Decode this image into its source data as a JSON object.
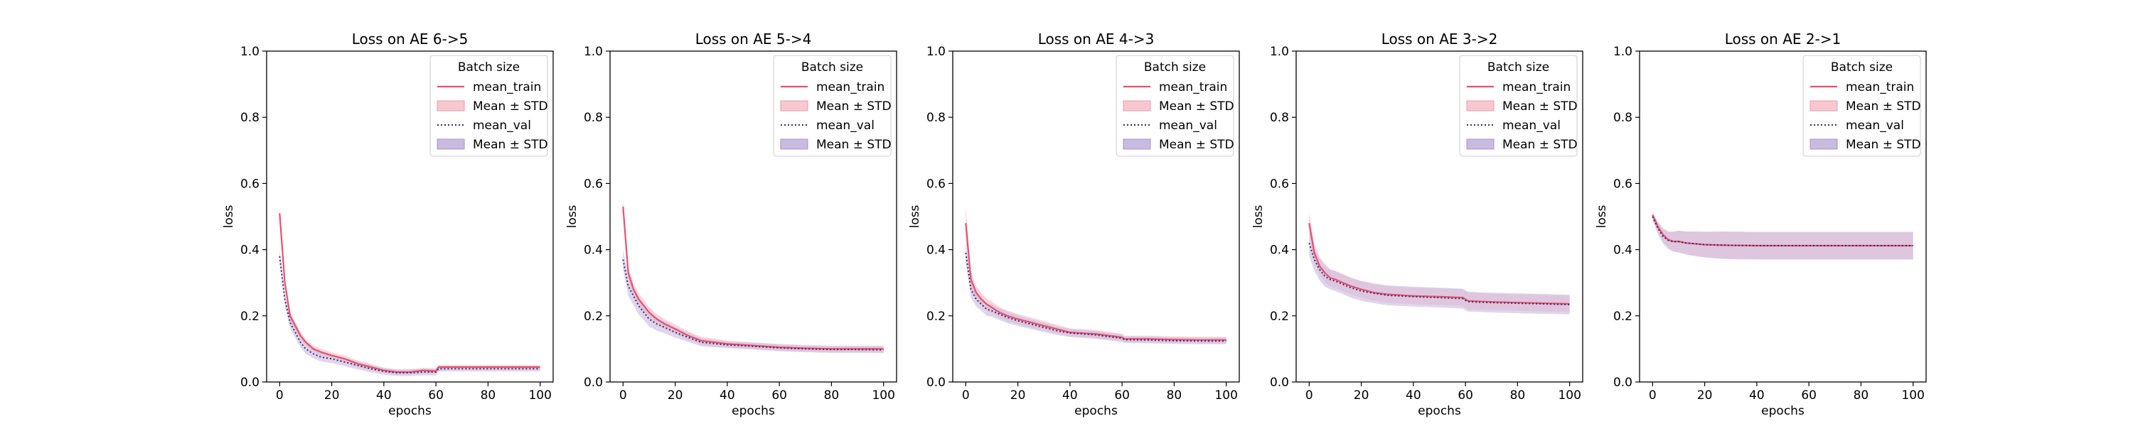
{
  "legend": {
    "title": "Batch size",
    "entries": [
      "mean_train",
      "Mean ± STD",
      "mean_val",
      "Mean ± STD"
    ]
  },
  "colors": {
    "train": "#e8506e",
    "train_band": "#f7c8d2",
    "val": "#3b2a6b",
    "val_band": "#c9bbe0",
    "overlap": "#d9a8c4"
  },
  "chart_data": [
    {
      "type": "line",
      "title": "Loss on AE 6->5",
      "xlabel": "epochs",
      "ylabel": "loss",
      "xlim": [
        -5,
        105
      ],
      "ylim": [
        0,
        1.0
      ],
      "xticks": [
        0,
        20,
        40,
        60,
        80,
        100
      ],
      "yticks": [
        0.0,
        0.2,
        0.4,
        0.6,
        0.8,
        1.0
      ],
      "legend_position": "top-right",
      "series": [
        {
          "name": "mean_train",
          "x": [
            0,
            2,
            4,
            6,
            8,
            10,
            13,
            16,
            20,
            25,
            30,
            35,
            40,
            45,
            50,
            55,
            60,
            61,
            70,
            80,
            90,
            100
          ],
          "values": [
            0.51,
            0.3,
            0.2,
            0.17,
            0.14,
            0.12,
            0.1,
            0.09,
            0.08,
            0.07,
            0.055,
            0.045,
            0.035,
            0.03,
            0.03,
            0.035,
            0.033,
            0.045,
            0.045,
            0.045,
            0.045,
            0.045
          ],
          "std": [
            0.02,
            0.015,
            0.015,
            0.012,
            0.012,
            0.01,
            0.01,
            0.01,
            0.01,
            0.01,
            0.01,
            0.01,
            0.008,
            0.008,
            0.008,
            0.008,
            0.008,
            0.006,
            0.006,
            0.006,
            0.006,
            0.006
          ]
        },
        {
          "name": "mean_val",
          "x": [
            0,
            2,
            4,
            6,
            8,
            10,
            13,
            16,
            20,
            25,
            30,
            35,
            40,
            45,
            50,
            55,
            60,
            61,
            70,
            80,
            90,
            100
          ],
          "values": [
            0.38,
            0.25,
            0.18,
            0.15,
            0.12,
            0.1,
            0.085,
            0.075,
            0.07,
            0.06,
            0.05,
            0.04,
            0.032,
            0.028,
            0.028,
            0.03,
            0.03,
            0.04,
            0.04,
            0.04,
            0.04,
            0.04
          ],
          "std": [
            0.02,
            0.018,
            0.018,
            0.016,
            0.015,
            0.015,
            0.014,
            0.013,
            0.013,
            0.012,
            0.012,
            0.011,
            0.01,
            0.01,
            0.01,
            0.01,
            0.01,
            0.008,
            0.008,
            0.008,
            0.008,
            0.008
          ]
        }
      ]
    },
    {
      "type": "line",
      "title": "Loss on AE 5->4",
      "xlabel": "epochs",
      "ylabel": "loss",
      "xlim": [
        -5,
        105
      ],
      "ylim": [
        0,
        1.0
      ],
      "xticks": [
        0,
        20,
        40,
        60,
        80,
        100
      ],
      "yticks": [
        0.0,
        0.2,
        0.4,
        0.6,
        0.8,
        1.0
      ],
      "legend_position": "top-right",
      "series": [
        {
          "name": "mean_train",
          "x": [
            0,
            2,
            4,
            6,
            8,
            10,
            13,
            16,
            20,
            25,
            30,
            40,
            50,
            60,
            70,
            80,
            90,
            100
          ],
          "values": [
            0.53,
            0.33,
            0.28,
            0.25,
            0.23,
            0.21,
            0.19,
            0.175,
            0.16,
            0.14,
            0.125,
            0.115,
            0.11,
            0.105,
            0.102,
            0.1,
            0.1,
            0.1
          ],
          "std": [
            0.02,
            0.02,
            0.02,
            0.018,
            0.018,
            0.016,
            0.015,
            0.015,
            0.014,
            0.013,
            0.012,
            0.01,
            0.01,
            0.01,
            0.01,
            0.01,
            0.01,
            0.01
          ]
        },
        {
          "name": "mean_val",
          "x": [
            0,
            2,
            4,
            6,
            8,
            10,
            13,
            16,
            20,
            25,
            30,
            40,
            50,
            60,
            70,
            80,
            90,
            100
          ],
          "values": [
            0.37,
            0.29,
            0.26,
            0.23,
            0.21,
            0.19,
            0.175,
            0.165,
            0.15,
            0.135,
            0.12,
            0.112,
            0.108,
            0.103,
            0.1,
            0.098,
            0.098,
            0.097
          ],
          "std": [
            0.03,
            0.03,
            0.028,
            0.026,
            0.024,
            0.022,
            0.02,
            0.018,
            0.016,
            0.014,
            0.012,
            0.01,
            0.01,
            0.01,
            0.01,
            0.01,
            0.01,
            0.01
          ]
        }
      ]
    },
    {
      "type": "line",
      "title": "Loss on AE 4->3",
      "xlabel": "epochs",
      "ylabel": "loss",
      "xlim": [
        -5,
        105
      ],
      "ylim": [
        0,
        1.0
      ],
      "xticks": [
        0,
        20,
        40,
        60,
        80,
        100
      ],
      "yticks": [
        0.0,
        0.2,
        0.4,
        0.6,
        0.8,
        1.0
      ],
      "legend_position": "top-right",
      "series": [
        {
          "name": "mean_train",
          "x": [
            0,
            2,
            4,
            6,
            8,
            10,
            13,
            16,
            20,
            25,
            30,
            35,
            40,
            50,
            60,
            61,
            70,
            80,
            90,
            100
          ],
          "values": [
            0.48,
            0.31,
            0.27,
            0.25,
            0.235,
            0.225,
            0.21,
            0.2,
            0.19,
            0.18,
            0.17,
            0.16,
            0.15,
            0.145,
            0.135,
            0.13,
            0.13,
            0.128,
            0.127,
            0.127
          ],
          "std": [
            0.05,
            0.025,
            0.02,
            0.02,
            0.018,
            0.018,
            0.016,
            0.016,
            0.015,
            0.015,
            0.014,
            0.013,
            0.012,
            0.012,
            0.011,
            0.01,
            0.01,
            0.01,
            0.01,
            0.01
          ]
        },
        {
          "name": "mean_val",
          "x": [
            0,
            2,
            4,
            6,
            8,
            10,
            13,
            16,
            20,
            25,
            30,
            35,
            40,
            50,
            60,
            61,
            70,
            80,
            90,
            100
          ],
          "values": [
            0.39,
            0.28,
            0.25,
            0.235,
            0.22,
            0.215,
            0.205,
            0.195,
            0.185,
            0.175,
            0.165,
            0.155,
            0.148,
            0.142,
            0.132,
            0.128,
            0.127,
            0.125,
            0.124,
            0.124
          ],
          "std": [
            0.03,
            0.025,
            0.022,
            0.02,
            0.02,
            0.018,
            0.018,
            0.017,
            0.016,
            0.015,
            0.014,
            0.013,
            0.012,
            0.012,
            0.011,
            0.01,
            0.01,
            0.01,
            0.01,
            0.01
          ]
        }
      ]
    },
    {
      "type": "line",
      "title": "Loss on AE 3->2",
      "xlabel": "epochs",
      "ylabel": "loss",
      "xlim": [
        -5,
        105
      ],
      "ylim": [
        0,
        1.0
      ],
      "xticks": [
        0,
        20,
        40,
        60,
        80,
        100
      ],
      "yticks": [
        0.0,
        0.2,
        0.4,
        0.6,
        0.8,
        1.0
      ],
      "legend_position": "top-right",
      "series": [
        {
          "name": "mean_train",
          "x": [
            0,
            2,
            4,
            6,
            8,
            10,
            13,
            16,
            20,
            25,
            30,
            40,
            50,
            59,
            60,
            61,
            70,
            80,
            90,
            100
          ],
          "values": [
            0.48,
            0.39,
            0.35,
            0.33,
            0.315,
            0.31,
            0.3,
            0.29,
            0.28,
            0.27,
            0.265,
            0.26,
            0.258,
            0.255,
            0.25,
            0.245,
            0.242,
            0.24,
            0.238,
            0.236
          ],
          "std": [
            0.03,
            0.03,
            0.028,
            0.028,
            0.026,
            0.026,
            0.026,
            0.025,
            0.025,
            0.025,
            0.025,
            0.025,
            0.025,
            0.025,
            0.025,
            0.025,
            0.025,
            0.025,
            0.025,
            0.025
          ]
        },
        {
          "name": "mean_val",
          "x": [
            0,
            2,
            4,
            6,
            8,
            10,
            13,
            16,
            20,
            25,
            30,
            40,
            50,
            59,
            60,
            61,
            70,
            80,
            90,
            100
          ],
          "values": [
            0.42,
            0.37,
            0.34,
            0.32,
            0.31,
            0.305,
            0.295,
            0.285,
            0.275,
            0.268,
            0.262,
            0.258,
            0.255,
            0.252,
            0.247,
            0.243,
            0.24,
            0.238,
            0.236,
            0.234
          ],
          "std": [
            0.04,
            0.035,
            0.033,
            0.032,
            0.03,
            0.03,
            0.03,
            0.03,
            0.03,
            0.03,
            0.03,
            0.03,
            0.03,
            0.03,
            0.03,
            0.03,
            0.03,
            0.03,
            0.03,
            0.03
          ]
        }
      ]
    },
    {
      "type": "line",
      "title": "Loss on AE 2->1",
      "xlabel": "epochs",
      "ylabel": "loss",
      "xlim": [
        -5,
        105
      ],
      "ylim": [
        0,
        1.0
      ],
      "xticks": [
        0,
        20,
        40,
        60,
        80,
        100
      ],
      "yticks": [
        0.0,
        0.2,
        0.4,
        0.6,
        0.8,
        1.0
      ],
      "legend_position": "top-right",
      "series": [
        {
          "name": "mean_train",
          "x": [
            0,
            2,
            4,
            6,
            8,
            10,
            13,
            16,
            20,
            25,
            30,
            40,
            50,
            60,
            70,
            80,
            90,
            100
          ],
          "values": [
            0.505,
            0.47,
            0.445,
            0.43,
            0.425,
            0.425,
            0.42,
            0.418,
            0.415,
            0.414,
            0.413,
            0.412,
            0.412,
            0.412,
            0.412,
            0.412,
            0.412,
            0.412
          ],
          "std": [
            0.01,
            0.015,
            0.02,
            0.025,
            0.03,
            0.032,
            0.034,
            0.036,
            0.038,
            0.04,
            0.04,
            0.04,
            0.04,
            0.04,
            0.04,
            0.04,
            0.04,
            0.04
          ]
        },
        {
          "name": "mean_val",
          "x": [
            0,
            2,
            4,
            6,
            8,
            10,
            13,
            16,
            20,
            25,
            30,
            40,
            50,
            60,
            70,
            80,
            90,
            100
          ],
          "values": [
            0.5,
            0.465,
            0.44,
            0.428,
            0.424,
            0.424,
            0.42,
            0.418,
            0.415,
            0.414,
            0.413,
            0.412,
            0.412,
            0.412,
            0.412,
            0.412,
            0.412,
            0.412
          ],
          "std": [
            0.012,
            0.018,
            0.022,
            0.026,
            0.03,
            0.033,
            0.035,
            0.037,
            0.039,
            0.041,
            0.042,
            0.042,
            0.042,
            0.042,
            0.042,
            0.042,
            0.042,
            0.042
          ]
        }
      ]
    }
  ]
}
